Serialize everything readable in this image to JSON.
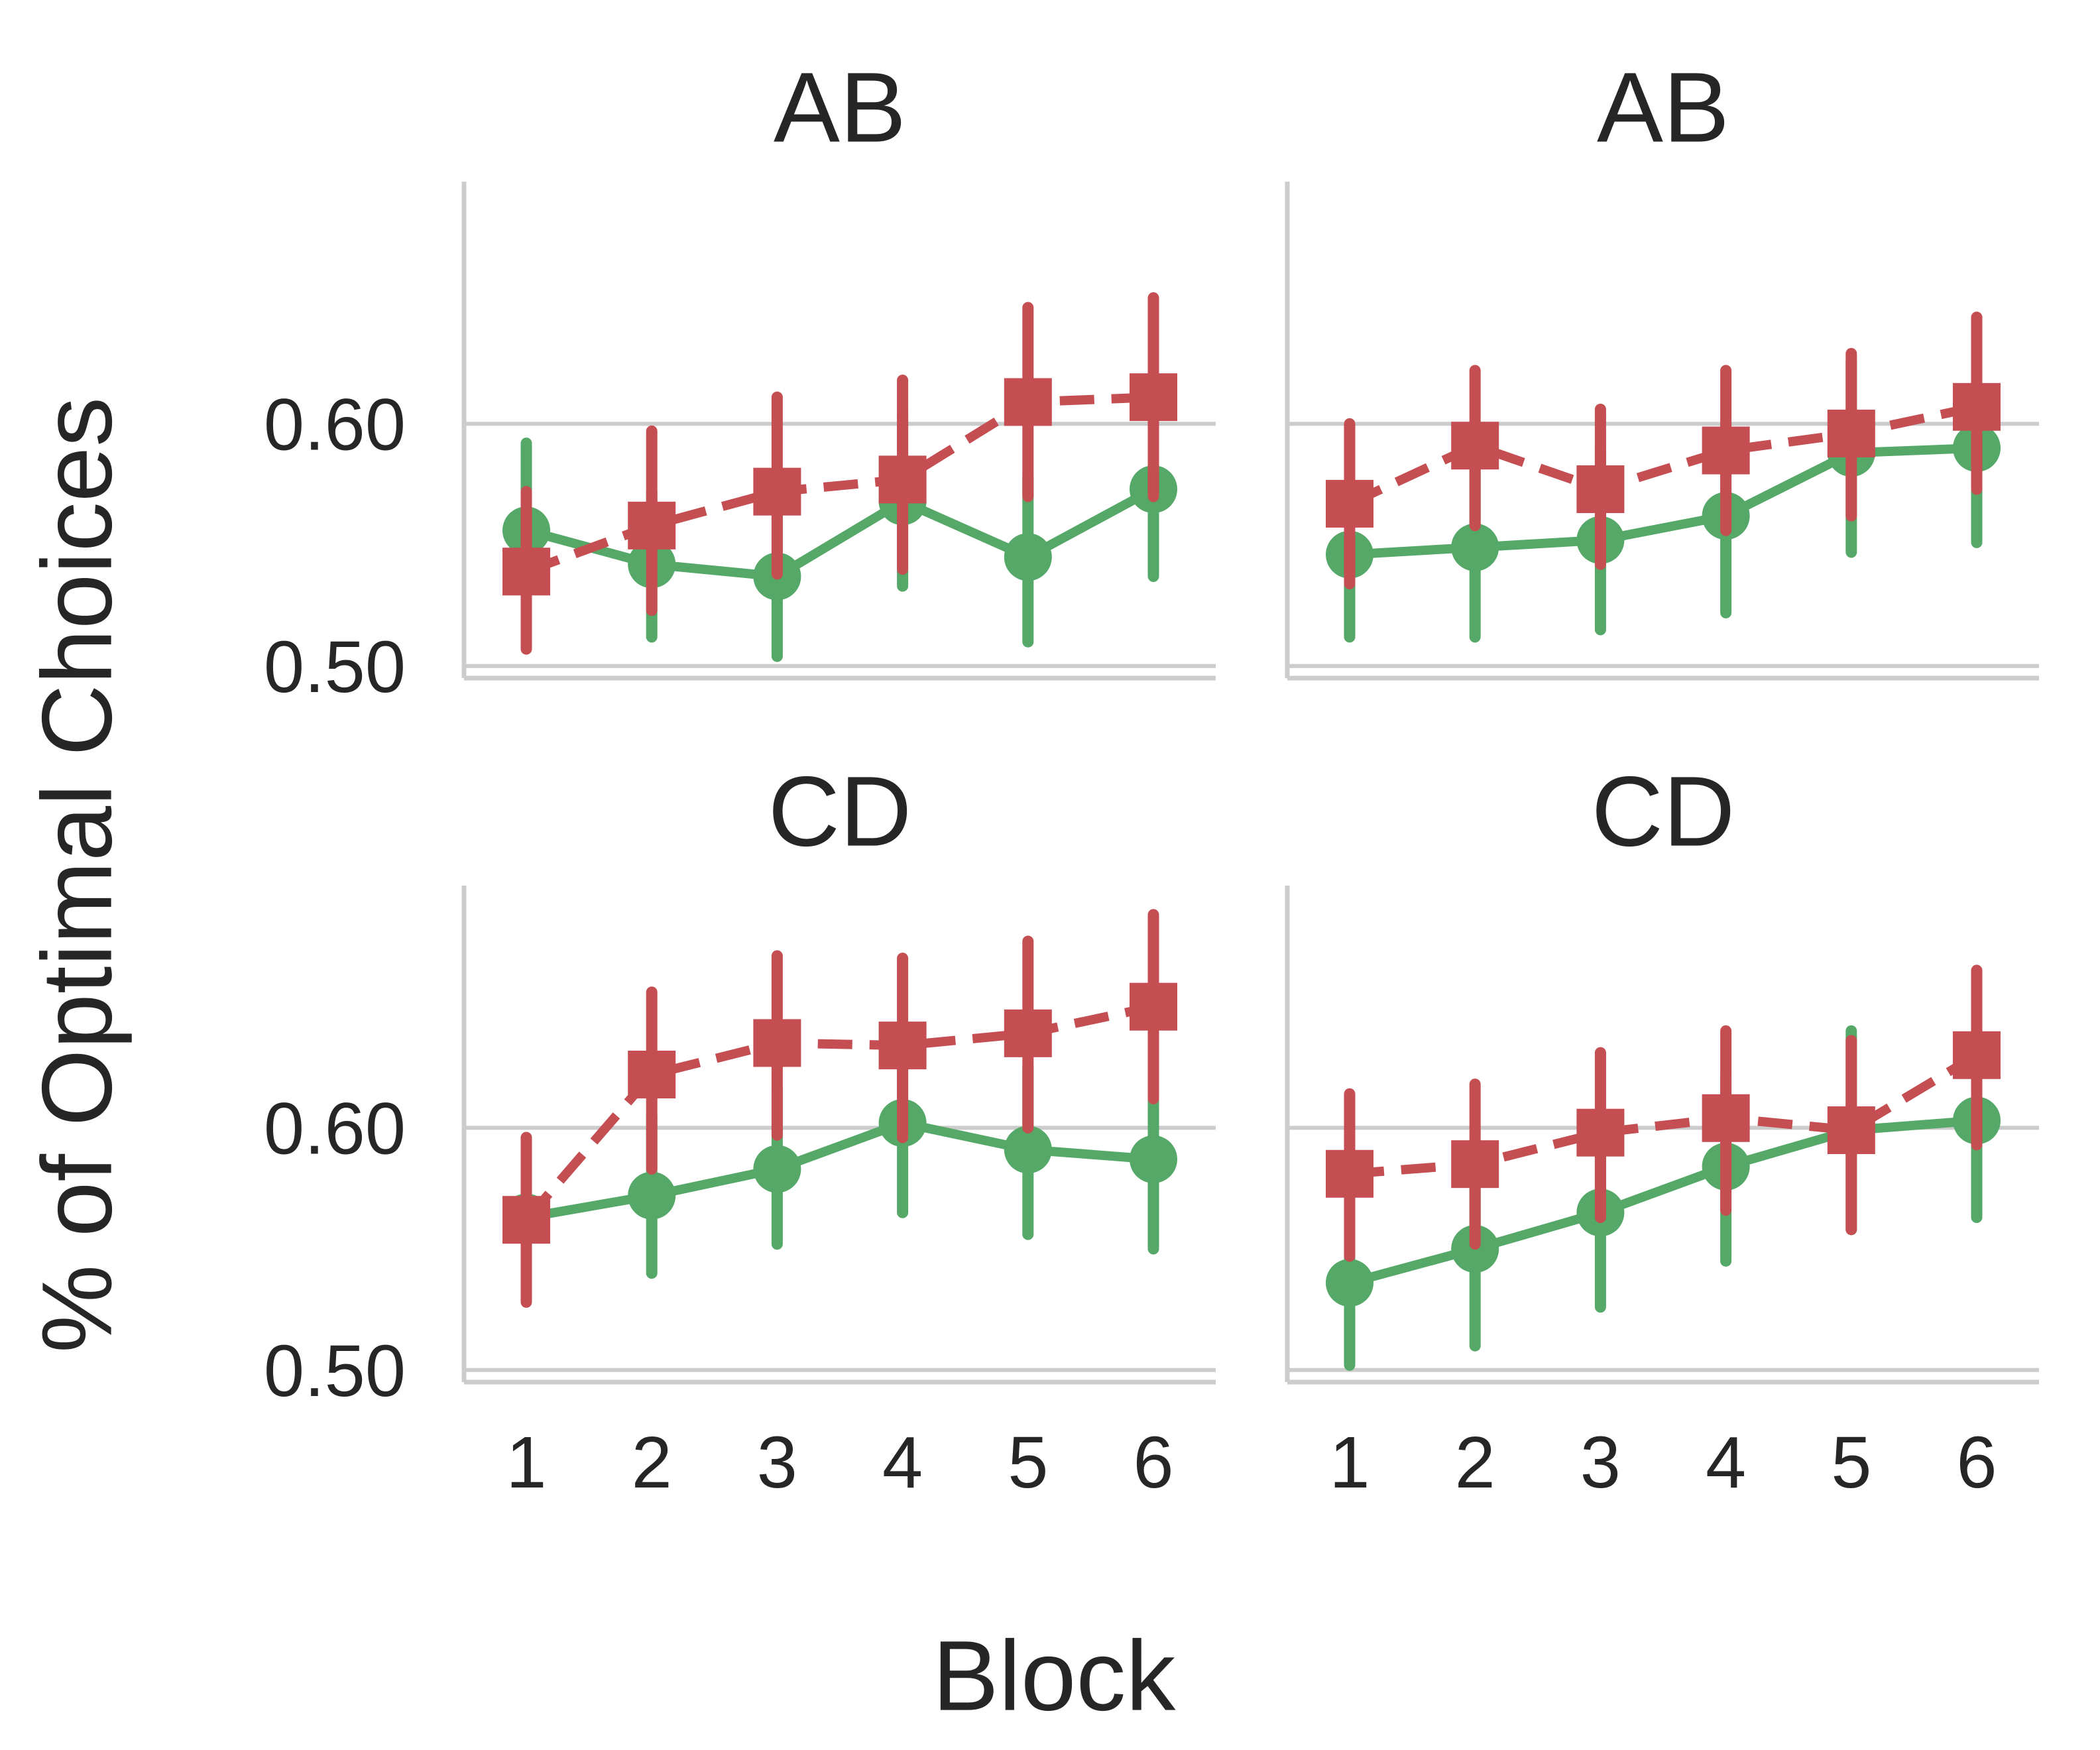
{
  "figure": {
    "ylabel": "% of Optimal Choices",
    "xlabel": "Block"
  },
  "colors": {
    "green_series": "#55a868",
    "red_series": "#c44e52",
    "grid": "#cccccc",
    "text": "#262626"
  },
  "chart_data": [
    {
      "type": "line",
      "title": "AB",
      "categories": [
        "1",
        "2",
        "3",
        "4",
        "5",
        "6"
      ],
      "ylim": [
        0.495,
        0.7
      ],
      "yticks": [
        "0.50",
        "0.60"
      ],
      "grid": true,
      "series": [
        {
          "style": "solid",
          "marker": "circle",
          "color": "#55a868",
          "values": [
            0.556,
            0.542,
            0.537,
            0.568,
            0.545,
            0.573
          ],
          "ci_low": [
            0.519,
            0.512,
            0.504,
            0.533,
            0.51,
            0.537
          ],
          "ci_high": [
            0.592,
            0.572,
            0.571,
            0.604,
            0.578,
            0.609
          ]
        },
        {
          "style": "dashed",
          "marker": "square",
          "color": "#c44e52",
          "values": [
            0.539,
            0.558,
            0.572,
            0.577,
            0.609,
            0.611
          ],
          "ci_low": [
            0.507,
            0.523,
            0.538,
            0.54,
            0.57,
            0.57
          ],
          "ci_high": [
            0.572,
            0.597,
            0.611,
            0.618,
            0.648,
            0.652
          ]
        }
      ]
    },
    {
      "type": "line",
      "title": "AB",
      "categories": [
        "1",
        "2",
        "3",
        "4",
        "5",
        "6"
      ],
      "ylim": [
        0.495,
        0.7
      ],
      "yticks": [
        "0.50",
        "0.60"
      ],
      "grid": true,
      "series": [
        {
          "style": "solid",
          "marker": "circle",
          "color": "#55a868",
          "values": [
            0.546,
            0.549,
            0.552,
            0.562,
            0.588,
            0.59
          ],
          "ci_low": [
            0.512,
            0.512,
            0.515,
            0.522,
            0.547,
            0.551
          ],
          "ci_high": [
            0.58,
            0.587,
            0.59,
            0.601,
            0.626,
            0.628
          ]
        },
        {
          "style": "dashed",
          "marker": "square",
          "color": "#c44e52",
          "values": [
            0.567,
            0.591,
            0.573,
            0.589,
            0.596,
            0.607
          ],
          "ci_low": [
            0.534,
            0.558,
            0.542,
            0.556,
            0.562,
            0.573
          ],
          "ci_high": [
            0.6,
            0.622,
            0.606,
            0.622,
            0.629,
            0.644
          ]
        }
      ]
    },
    {
      "type": "line",
      "title": "CD",
      "categories": [
        "1",
        "2",
        "3",
        "4",
        "5",
        "6"
      ],
      "ylim": [
        0.495,
        0.7
      ],
      "yticks": [
        "0.50",
        "0.60"
      ],
      "grid": true,
      "series": [
        {
          "style": "solid",
          "marker": "circle",
          "color": "#55a868",
          "values": [
            0.563,
            0.572,
            0.583,
            0.602,
            0.591,
            0.587
          ],
          "ci_low": [
            0.53,
            0.54,
            0.552,
            0.565,
            0.556,
            0.55
          ],
          "ci_high": [
            0.595,
            0.605,
            0.616,
            0.64,
            0.625,
            0.625
          ]
        },
        {
          "style": "dashed",
          "marker": "square",
          "color": "#c44e52",
          "values": [
            0.562,
            0.622,
            0.635,
            0.634,
            0.639,
            0.65
          ],
          "ci_low": [
            0.528,
            0.583,
            0.597,
            0.596,
            0.6,
            0.612
          ],
          "ci_high": [
            0.596,
            0.656,
            0.671,
            0.67,
            0.677,
            0.688
          ]
        }
      ]
    },
    {
      "type": "line",
      "title": "CD",
      "categories": [
        "1",
        "2",
        "3",
        "4",
        "5",
        "6"
      ],
      "ylim": [
        0.495,
        0.7
      ],
      "yticks": [
        "0.50",
        "0.60"
      ],
      "grid": true,
      "series": [
        {
          "style": "solid",
          "marker": "circle",
          "color": "#55a868",
          "values": [
            0.536,
            0.55,
            0.565,
            0.584,
            0.599,
            0.603
          ],
          "ci_low": [
            0.502,
            0.51,
            0.526,
            0.545,
            0.558,
            0.563
          ],
          "ci_high": [
            0.57,
            0.59,
            0.604,
            0.622,
            0.64,
            0.643
          ]
        },
        {
          "style": "dashed",
          "marker": "square",
          "color": "#c44e52",
          "values": [
            0.581,
            0.585,
            0.598,
            0.604,
            0.599,
            0.63
          ],
          "ci_low": [
            0.547,
            0.552,
            0.563,
            0.566,
            0.558,
            0.593
          ],
          "ci_high": [
            0.614,
            0.618,
            0.631,
            0.64,
            0.636,
            0.665
          ]
        }
      ]
    }
  ]
}
